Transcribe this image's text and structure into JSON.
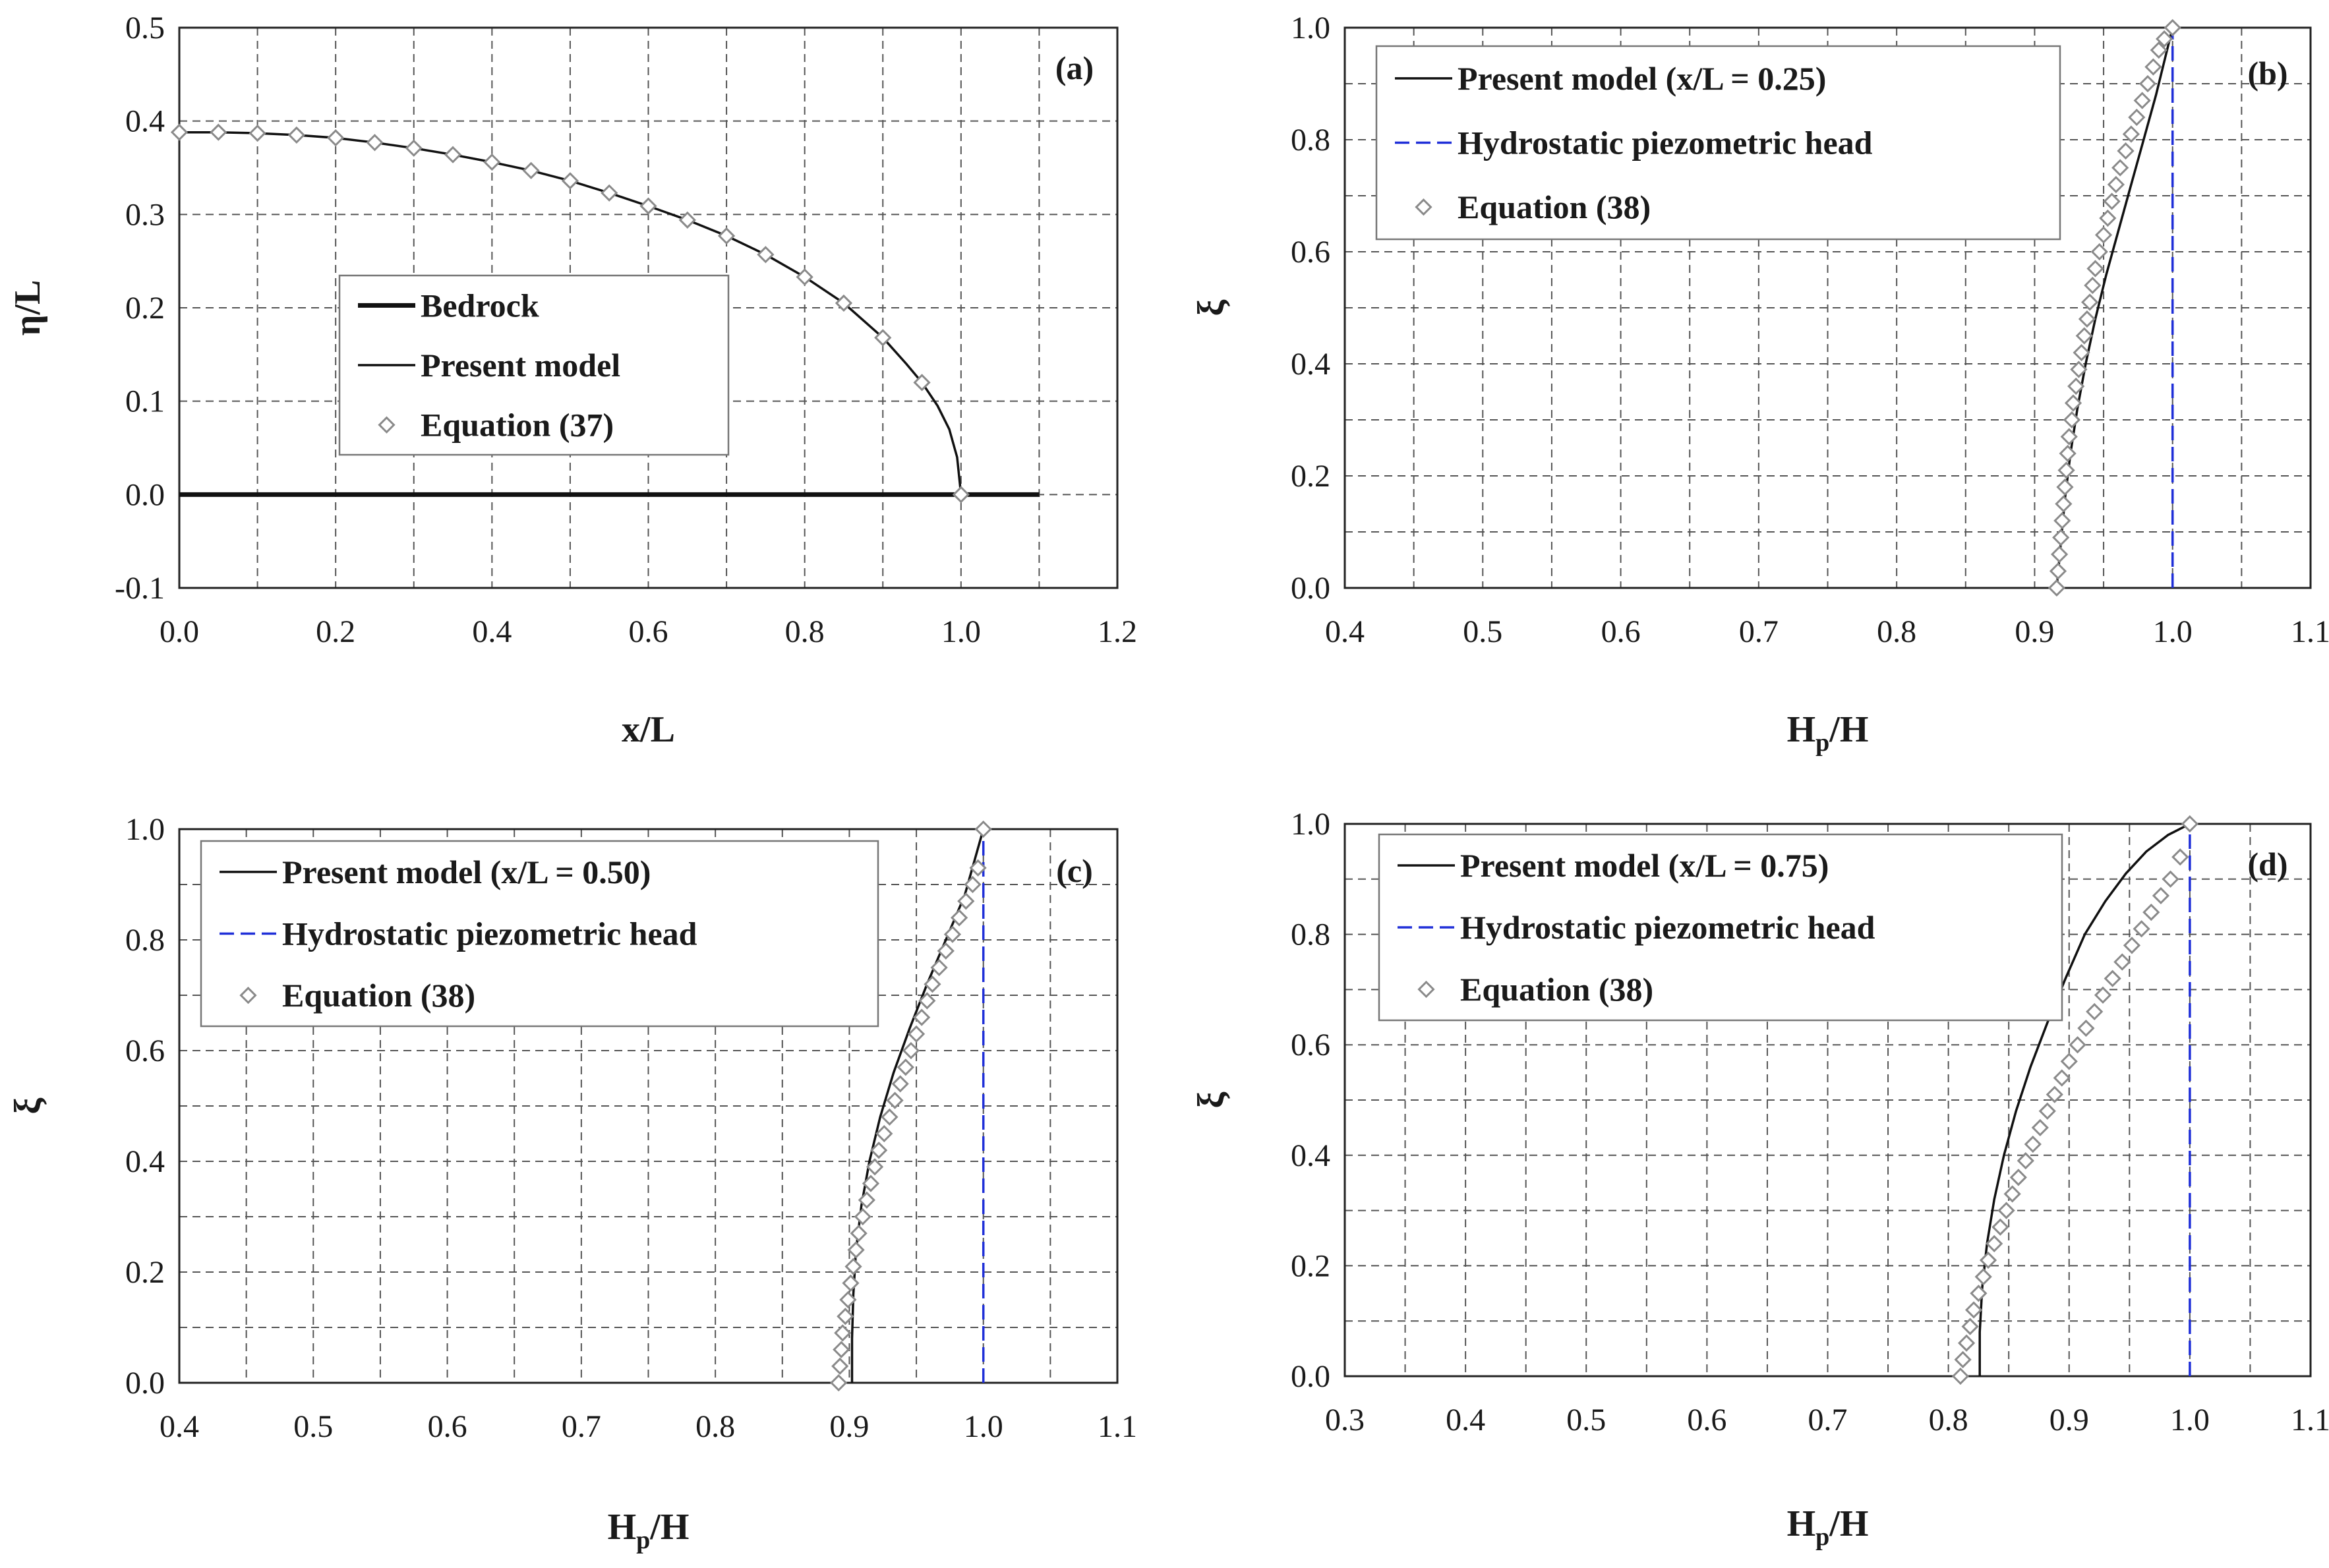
{
  "figure": {
    "background": "#ffffff",
    "hydrostatic_color": "#1f2fd8",
    "line_color": "#111111",
    "marker_color": "#8a8a8a"
  },
  "chart_data": [
    {
      "type": "line",
      "panel_label": "(a)",
      "xlabel": "x/L",
      "ylabel": "η/L",
      "xlim": [
        0.0,
        1.2
      ],
      "ylim": [
        -0.1,
        0.5
      ],
      "xticks": [
        "0.0",
        "0.2",
        "0.4",
        "0.6",
        "0.8",
        "1.0",
        "1.2"
      ],
      "yticks": [
        "-0.1",
        "0.0",
        "0.1",
        "0.2",
        "0.3",
        "0.4",
        "0.5"
      ],
      "grid": true,
      "legend_position": "center",
      "legend": [
        "Bedrock",
        "Present model",
        "Equation (37)"
      ],
      "series": [
        {
          "name": "Bedrock",
          "style": "thick-line",
          "x": [
            0.0,
            1.1
          ],
          "y": [
            0.0,
            0.0
          ]
        },
        {
          "name": "Present model",
          "style": "line",
          "x": [
            0.0,
            0.05,
            0.1,
            0.15,
            0.2,
            0.25,
            0.3,
            0.35,
            0.4,
            0.45,
            0.5,
            0.55,
            0.6,
            0.65,
            0.7,
            0.75,
            0.8,
            0.85,
            0.9,
            0.93,
            0.95,
            0.97,
            0.985,
            0.995,
            1.0
          ],
          "y": [
            0.388,
            0.388,
            0.387,
            0.385,
            0.382,
            0.377,
            0.371,
            0.364,
            0.356,
            0.347,
            0.336,
            0.323,
            0.309,
            0.294,
            0.277,
            0.257,
            0.233,
            0.205,
            0.168,
            0.14,
            0.12,
            0.095,
            0.07,
            0.04,
            0.0
          ]
        },
        {
          "name": "Equation (37)",
          "style": "diamond",
          "x": [
            0.0,
            0.05,
            0.1,
            0.15,
            0.2,
            0.25,
            0.3,
            0.35,
            0.4,
            0.45,
            0.5,
            0.55,
            0.6,
            0.65,
            0.7,
            0.75,
            0.8,
            0.85,
            0.9,
            0.95,
            1.0
          ],
          "y": [
            0.388,
            0.388,
            0.387,
            0.385,
            0.382,
            0.377,
            0.371,
            0.364,
            0.356,
            0.347,
            0.336,
            0.323,
            0.309,
            0.294,
            0.277,
            0.257,
            0.233,
            0.205,
            0.168,
            0.12,
            0.0
          ]
        }
      ]
    },
    {
      "type": "line",
      "panel_label": "(b)",
      "xlabel_main": "H",
      "xlabel_sub": "p",
      "xlabel_tail": "/H",
      "ylabel": "ξ",
      "xlim": [
        0.4,
        1.1
      ],
      "ylim": [
        0.0,
        1.0
      ],
      "xticks": [
        "0.4",
        "0.5",
        "0.6",
        "0.7",
        "0.8",
        "0.9",
        "1.0",
        "1.1"
      ],
      "yticks": [
        "0.0",
        "0.2",
        "0.4",
        "0.6",
        "0.8",
        "1.0"
      ],
      "grid": true,
      "legend_position": "top-left",
      "legend": [
        "Present model (x/L = 0.25)",
        "Hydrostatic piezometric head",
        "Equation (38)"
      ],
      "series": [
        {
          "name": "Present model (x/L = 0.25)",
          "style": "line",
          "x": [
            0.916,
            0.919,
            0.922,
            0.926,
            0.931,
            0.937,
            0.944,
            0.952,
            0.961,
            0.97,
            0.979,
            0.988,
            1.0
          ],
          "y": [
            0.0,
            0.08,
            0.16,
            0.24,
            0.32,
            0.4,
            0.48,
            0.56,
            0.64,
            0.72,
            0.8,
            0.88,
            1.0
          ]
        },
        {
          "name": "Hydrostatic piezometric head",
          "style": "dashed",
          "x": [
            1.0,
            1.0
          ],
          "y": [
            0.0,
            1.0
          ]
        },
        {
          "name": "Equation (38)",
          "style": "diamond",
          "x": [
            0.916,
            0.917,
            0.918,
            0.919,
            0.92,
            0.921,
            0.922,
            0.923,
            0.924,
            0.925,
            0.927,
            0.928,
            0.93,
            0.932,
            0.934,
            0.936,
            0.938,
            0.94,
            0.942,
            0.944,
            0.947,
            0.95,
            0.953,
            0.956,
            0.959,
            0.962,
            0.966,
            0.97,
            0.974,
            0.978,
            0.982,
            0.986,
            0.99,
            0.994,
            1.0
          ],
          "y": [
            0.0,
            0.03,
            0.06,
            0.09,
            0.12,
            0.15,
            0.18,
            0.21,
            0.24,
            0.27,
            0.3,
            0.33,
            0.36,
            0.39,
            0.42,
            0.45,
            0.48,
            0.51,
            0.54,
            0.57,
            0.6,
            0.63,
            0.66,
            0.69,
            0.72,
            0.75,
            0.78,
            0.81,
            0.84,
            0.87,
            0.9,
            0.93,
            0.96,
            0.98,
            1.0
          ]
        }
      ]
    },
    {
      "type": "line",
      "panel_label": "(c)",
      "xlabel_main": "H",
      "xlabel_sub": "p",
      "xlabel_tail": "/H",
      "ylabel": "ξ",
      "xlim": [
        0.4,
        1.1
      ],
      "ylim": [
        0.0,
        1.0
      ],
      "xticks": [
        "0.4",
        "0.5",
        "0.6",
        "0.7",
        "0.8",
        "0.9",
        "1.0",
        "1.1"
      ],
      "yticks": [
        "0.0",
        "0.2",
        "0.4",
        "0.6",
        "0.8",
        "1.0"
      ],
      "grid": true,
      "legend_position": "top-left",
      "legend": [
        "Present model (x/L = 0.50)",
        "Hydrostatic piezometric head",
        "Equation (38)"
      ],
      "series": [
        {
          "name": "Present model (x/L = 0.50)",
          "style": "line",
          "x": [
            0.902,
            0.902,
            0.903,
            0.905,
            0.909,
            0.915,
            0.923,
            0.933,
            0.945,
            0.958,
            0.972,
            0.986,
            1.0
          ],
          "y": [
            0.0,
            0.08,
            0.16,
            0.24,
            0.32,
            0.4,
            0.48,
            0.56,
            0.64,
            0.72,
            0.8,
            0.88,
            1.0
          ]
        },
        {
          "name": "Hydrostatic piezometric head",
          "style": "dashed",
          "x": [
            1.0,
            1.0
          ],
          "y": [
            0.0,
            1.0
          ]
        },
        {
          "name": "Equation (38)",
          "style": "diamond",
          "x": [
            0.892,
            0.893,
            0.894,
            0.895,
            0.897,
            0.899,
            0.901,
            0.903,
            0.905,
            0.907,
            0.91,
            0.913,
            0.916,
            0.919,
            0.922,
            0.926,
            0.93,
            0.934,
            0.938,
            0.942,
            0.946,
            0.95,
            0.954,
            0.958,
            0.962,
            0.967,
            0.972,
            0.977,
            0.982,
            0.987,
            0.992,
            0.996,
            1.0
          ],
          "y": [
            0.0,
            0.03,
            0.06,
            0.09,
            0.12,
            0.15,
            0.18,
            0.21,
            0.24,
            0.27,
            0.3,
            0.33,
            0.36,
            0.39,
            0.42,
            0.45,
            0.48,
            0.51,
            0.54,
            0.57,
            0.6,
            0.63,
            0.66,
            0.69,
            0.72,
            0.75,
            0.78,
            0.81,
            0.84,
            0.87,
            0.9,
            0.93,
            1.0
          ]
        }
      ]
    },
    {
      "type": "line",
      "panel_label": "(d)",
      "xlabel_main": "H",
      "xlabel_sub": "p",
      "xlabel_tail": "/H",
      "ylabel": "ξ",
      "xlim": [
        0.3,
        1.1
      ],
      "ylim": [
        0.0,
        1.0
      ],
      "xticks": [
        "0.3",
        "0.4",
        "0.5",
        "0.6",
        "0.7",
        "0.8",
        "0.9",
        "1.0",
        "1.1"
      ],
      "yticks": [
        "0.0",
        "0.2",
        "0.4",
        "0.6",
        "0.8",
        "1.0"
      ],
      "grid": true,
      "legend_position": "top-left",
      "legend": [
        "Present model (x/L = 0.75)",
        "Hydrostatic piezometric head",
        "Equation (38)"
      ],
      "series": [
        {
          "name": "Present model (x/L = 0.75)",
          "style": "line",
          "x": [
            0.826,
            0.826,
            0.828,
            0.832,
            0.838,
            0.846,
            0.856,
            0.868,
            0.882,
            0.897,
            0.913,
            0.93,
            0.947,
            0.964,
            0.982,
            1.0
          ],
          "y": [
            0.0,
            0.08,
            0.16,
            0.24,
            0.32,
            0.4,
            0.48,
            0.56,
            0.64,
            0.72,
            0.8,
            0.86,
            0.91,
            0.95,
            0.98,
            1.0
          ]
        },
        {
          "name": "Hydrostatic piezometric head",
          "style": "dashed",
          "x": [
            1.0,
            1.0
          ],
          "y": [
            0.0,
            1.0
          ]
        },
        {
          "name": "Equation (38)",
          "style": "diamond",
          "x": [
            0.81,
            0.812,
            0.815,
            0.818,
            0.821,
            0.825,
            0.829,
            0.833,
            0.838,
            0.843,
            0.848,
            0.853,
            0.858,
            0.864,
            0.87,
            0.876,
            0.882,
            0.888,
            0.894,
            0.9,
            0.907,
            0.914,
            0.921,
            0.928,
            0.936,
            0.944,
            0.952,
            0.96,
            0.968,
            0.976,
            0.984,
            0.992,
            1.0
          ],
          "y": [
            0.0,
            0.03,
            0.06,
            0.09,
            0.12,
            0.15,
            0.18,
            0.21,
            0.24,
            0.27,
            0.3,
            0.33,
            0.36,
            0.39,
            0.42,
            0.45,
            0.48,
            0.51,
            0.54,
            0.57,
            0.6,
            0.63,
            0.66,
            0.69,
            0.72,
            0.75,
            0.78,
            0.81,
            0.84,
            0.87,
            0.9,
            0.94,
            1.0
          ]
        }
      ]
    }
  ]
}
